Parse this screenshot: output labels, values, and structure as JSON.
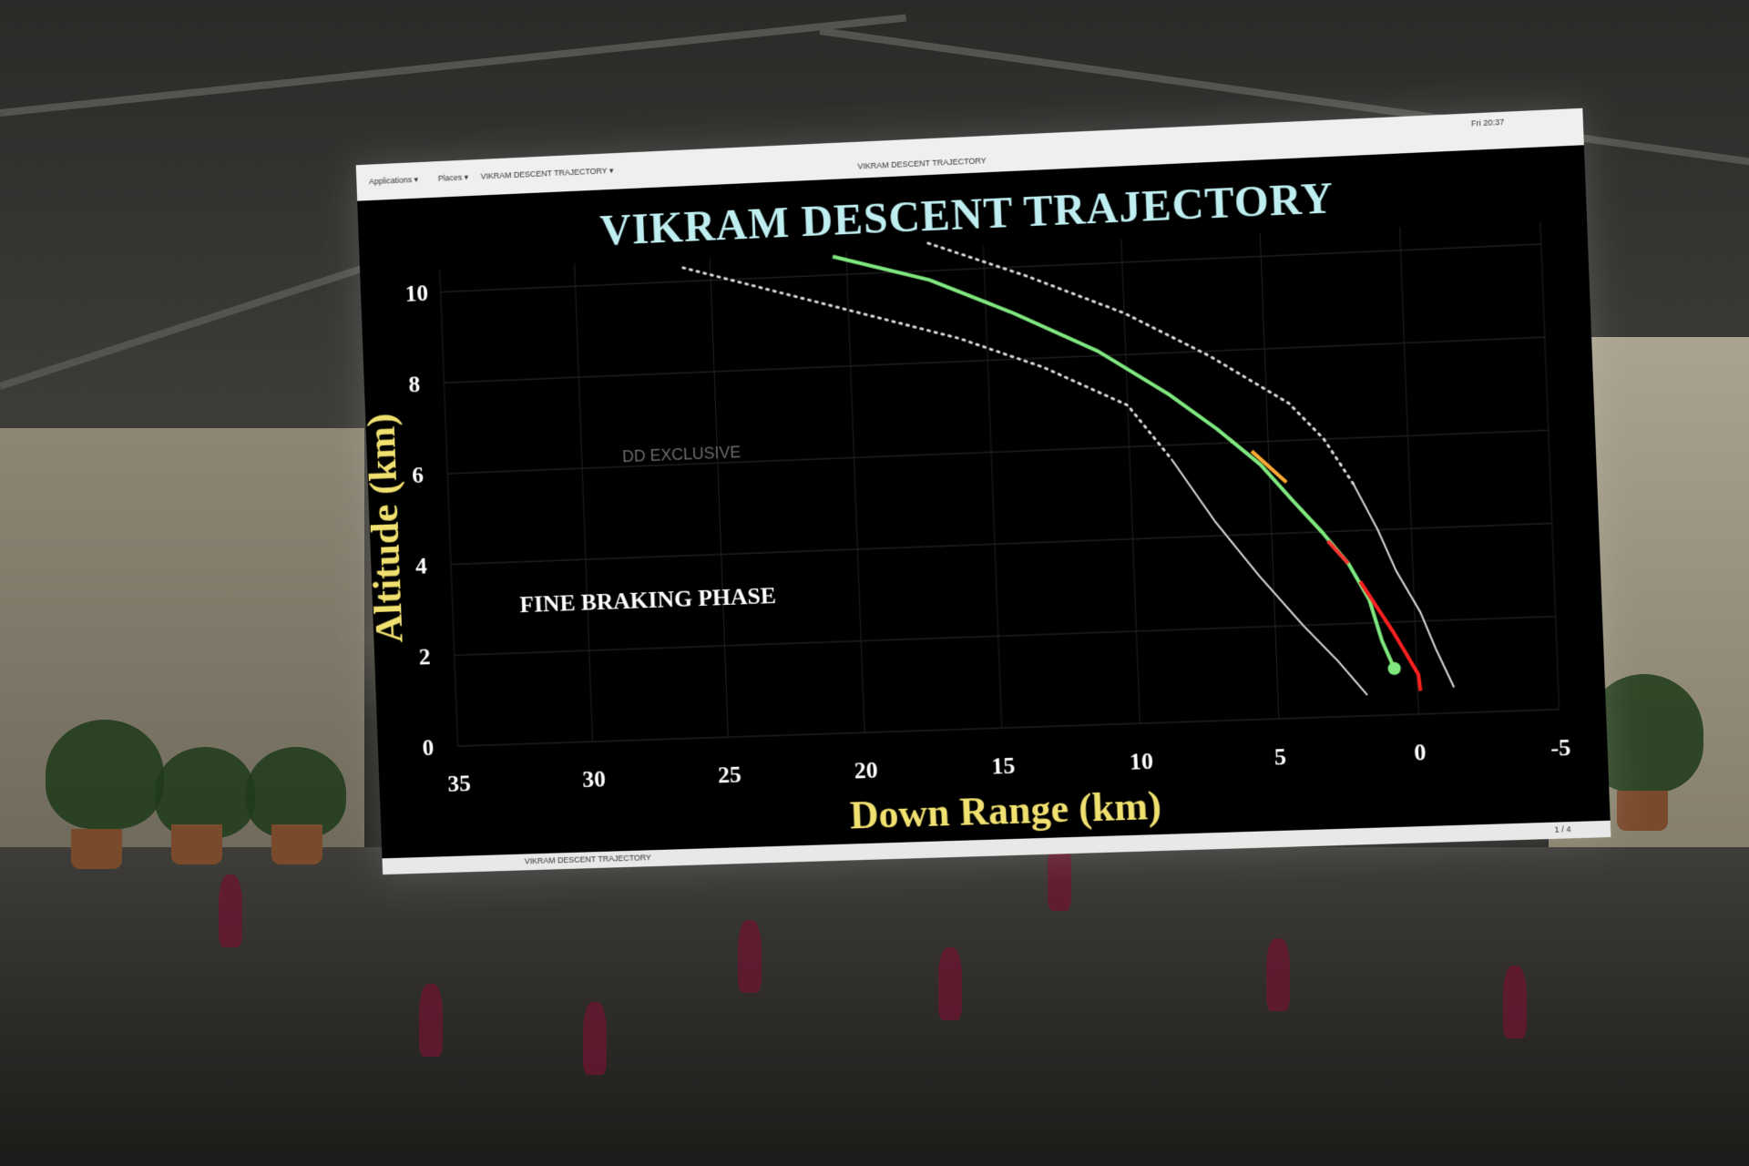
{
  "os_bar": {
    "applications": "Applications ▾",
    "places": "Places ▾",
    "app_menu": "VIKRAM DESCENT TRAJECTORY ▾",
    "window_title": "VIKRAM DESCENT TRAJECTORY",
    "clock": "Fri 20:37"
  },
  "taskbar": {
    "task_label": "VIKRAM DESCENT TRAJECTORY",
    "workspace": "1 / 4"
  },
  "watermark": "DD EXCLUSIVE",
  "chart_data": {
    "type": "line",
    "title": "VIKRAM DESCENT TRAJECTORY",
    "xlabel": "Down Range (km)",
    "ylabel": "Altitude (km)",
    "xlim": [
      35,
      -5
    ],
    "ylim": [
      0,
      10.5
    ],
    "x_ticks": [
      35,
      30,
      25,
      20,
      15,
      10,
      5,
      0,
      -5
    ],
    "y_ticks": [
      0,
      2,
      4,
      6,
      8,
      10
    ],
    "grid": true,
    "annotations": [
      {
        "text": "FINE BRAKING PHASE",
        "x": 32.5,
        "y": 2.9
      }
    ],
    "series": [
      {
        "role": "lower-bound",
        "color": "#d8d8d8",
        "style": "dotted-then-solid",
        "x": [
          26.0,
          21.0,
          16.0,
          13.0,
          10.0,
          8.5,
          7.0,
          5.5,
          4.0,
          2.8,
          1.8
        ],
        "y": [
          10.3,
          9.4,
          8.5,
          7.8,
          6.9,
          5.7,
          4.3,
          3.1,
          2.0,
          1.2,
          0.45
        ]
      },
      {
        "role": "upper-bound",
        "color": "#d8d8d8",
        "style": "dotted-then-solid",
        "x": [
          17.0,
          13.5,
          10.0,
          7.0,
          4.2,
          3.0,
          2.0,
          1.2,
          0.6,
          -0.2,
          -0.7,
          -1.3
        ],
        "y": [
          10.6,
          9.8,
          8.9,
          7.9,
          6.8,
          6.0,
          5.0,
          4.0,
          3.1,
          2.2,
          1.4,
          0.55
        ]
      },
      {
        "role": "actual",
        "color": "#7fe87f",
        "x": [
          20.5,
          17.0,
          14.0,
          11.0,
          8.5,
          6.8,
          5.3,
          4.2,
          3.2,
          2.3,
          1.6,
          1.2,
          0.8
        ],
        "y": [
          10.4,
          9.8,
          9.0,
          8.1,
          7.1,
          6.3,
          5.5,
          4.7,
          4.0,
          3.3,
          2.5,
          1.6,
          1.0
        ]
      },
      {
        "role": "deviation",
        "color": "#ff2020",
        "x": [
          1.9,
          1.3,
          0.8,
          0.35,
          -0.05,
          -0.1
        ],
        "y": [
          2.9,
          2.3,
          1.8,
          1.3,
          0.85,
          0.5
        ]
      }
    ],
    "segments_highlight": [
      {
        "color": "#ffaa33",
        "x": [
          5.6,
          4.4
        ],
        "y": [
          5.8,
          5.1
        ]
      },
      {
        "color": "#ff3333",
        "x": [
          3.0,
          2.3
        ],
        "y": [
          3.8,
          3.3
        ]
      }
    ],
    "end_point": {
      "x": 0.8,
      "y": 1.0,
      "color": "#7fe87f"
    }
  }
}
